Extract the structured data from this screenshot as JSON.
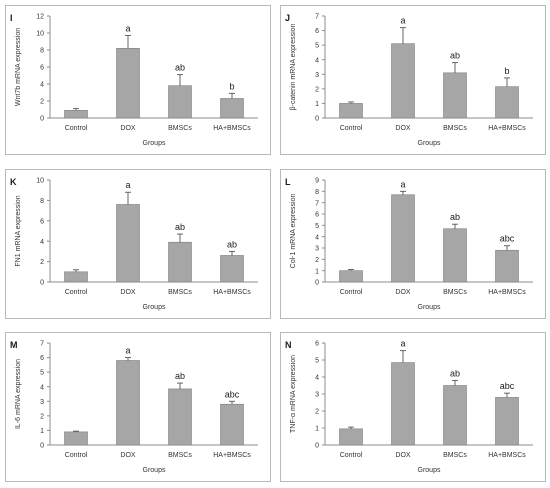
{
  "colors": {
    "bar": "#a6a6a6",
    "bar_edge": "#7f7f7f",
    "axis": "#8c8c8c",
    "text": "#333333"
  },
  "chart_data": [
    {
      "panel": "I",
      "type": "bar",
      "ylabel": "Wnt7b mRNA expression",
      "xlabel": "Groups",
      "categories": [
        "Control",
        "DOX",
        "BMSCs",
        "HA+BMSCs"
      ],
      "values": [
        0.9,
        8.2,
        3.8,
        2.3
      ],
      "errors": [
        0.2,
        1.5,
        1.3,
        0.6
      ],
      "labels": [
        "",
        "a",
        "ab",
        "b"
      ],
      "ylim": [
        0,
        12
      ],
      "yticks": [
        "0",
        "2",
        "4",
        "6",
        "8",
        "10",
        "12"
      ]
    },
    {
      "panel": "J",
      "type": "bar",
      "ylabel": "β-catenin mRNA expression",
      "xlabel": "Groups",
      "categories": [
        "Control",
        "DOX",
        "BMSCs",
        "HA+BMSCs"
      ],
      "values": [
        1.0,
        5.1,
        3.1,
        2.15
      ],
      "errors": [
        0.1,
        1.1,
        0.7,
        0.6
      ],
      "labels": [
        "",
        "a",
        "ab",
        "b"
      ],
      "ylim": [
        0,
        7
      ],
      "yticks": [
        "0",
        "1",
        "2",
        "3",
        "4",
        "5",
        "6",
        "7"
      ]
    },
    {
      "panel": "K",
      "type": "bar",
      "ylabel": "FN1 mRNA expression",
      "xlabel": "Groups",
      "categories": [
        "Control",
        "DOX",
        "BMSCs",
        "HA+BMSCs"
      ],
      "values": [
        1.0,
        7.6,
        3.9,
        2.6
      ],
      "errors": [
        0.2,
        1.2,
        0.8,
        0.4
      ],
      "labels": [
        "",
        "a",
        "ab",
        "ab"
      ],
      "ylim": [
        0,
        10
      ],
      "yticks": [
        "0",
        "2",
        "4",
        "6",
        "8",
        "10"
      ]
    },
    {
      "panel": "L",
      "type": "bar",
      "ylabel": "Col-1 mRNA expression",
      "xlabel": "Groups",
      "categories": [
        "Control",
        "DOX",
        "BMSCs",
        "HA+BMSCs"
      ],
      "values": [
        1.0,
        7.7,
        4.7,
        2.8
      ],
      "errors": [
        0.1,
        0.3,
        0.4,
        0.4
      ],
      "labels": [
        "",
        "a",
        "ab",
        "abc"
      ],
      "ylim": [
        0,
        9
      ],
      "yticks": [
        "0",
        "1",
        "2",
        "3",
        "4",
        "5",
        "6",
        "7",
        "8",
        "9"
      ]
    },
    {
      "panel": "M",
      "type": "bar",
      "ylabel": "IL-6 mRNA expression",
      "xlabel": "Groups",
      "categories": [
        "Control",
        "DOX",
        "BMSCs",
        "HA+BMSCs"
      ],
      "values": [
        0.9,
        5.8,
        3.85,
        2.8
      ],
      "errors": [
        0.05,
        0.2,
        0.4,
        0.2
      ],
      "labels": [
        "",
        "a",
        "ab",
        "abc"
      ],
      "ylim": [
        0,
        7
      ],
      "yticks": [
        "0",
        "1",
        "2",
        "3",
        "4",
        "5",
        "6",
        "7"
      ]
    },
    {
      "panel": "N",
      "type": "bar",
      "ylabel": "TNF-α mRNA expression",
      "xlabel": "Groups",
      "categories": [
        "Control",
        "DOX",
        "BMSCs",
        "HA+BMSCs"
      ],
      "values": [
        0.95,
        4.85,
        3.5,
        2.8
      ],
      "errors": [
        0.1,
        0.7,
        0.3,
        0.25
      ],
      "labels": [
        "",
        "a",
        "ab",
        "abc"
      ],
      "ylim": [
        0,
        6
      ],
      "yticks": [
        "0",
        "1",
        "2",
        "3",
        "4",
        "5",
        "6"
      ]
    }
  ]
}
